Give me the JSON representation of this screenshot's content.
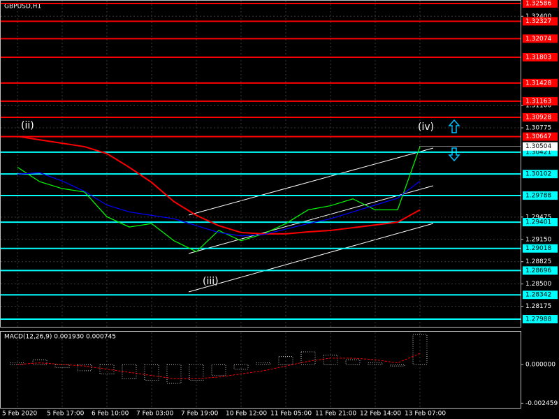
{
  "chart_data": [
    {
      "type": "line",
      "title": "GBPUSD,H1",
      "categories": [
        "5 Feb 2020",
        null,
        "5 Feb 17:00",
        null,
        "6 Feb 10:00",
        null,
        "7 Feb 03:00",
        null,
        "7 Feb 19:00",
        null,
        "10 Feb 12:00",
        null,
        "11 Feb 05:00",
        null,
        "11 Feb 21:00",
        null,
        "12 Feb 14:00",
        null,
        "13 Feb 07:00"
      ],
      "series": [
        {
          "color": "#00ff00",
          "values": [
            1.302,
            1.2999,
            1.2989,
            1.2984,
            1.2948,
            1.2933,
            1.2938,
            1.2913,
            1.2897,
            1.2928,
            1.2913,
            1.2923,
            1.2938,
            1.2958,
            1.2964,
            1.2974,
            1.2958,
            1.2958,
            1.305
          ]
        },
        {
          "color": "#ff0000",
          "values": [
            1.3065,
            1.306,
            1.3055,
            1.305,
            1.304,
            1.302,
            1.2998,
            1.297,
            1.295,
            1.2935,
            1.2925,
            1.2923,
            1.2923,
            1.2926,
            1.2928,
            1.2932,
            1.2936,
            1.294,
            1.2958
          ]
        },
        {
          "color": "#0000ff",
          "values": [
            1.301,
            1.3012,
            1.3,
            1.2985,
            1.2965,
            1.2955,
            1.295,
            1.2945,
            1.2935,
            1.2925,
            1.292,
            1.2922,
            1.293,
            1.2938,
            1.2945,
            1.2955,
            1.2965,
            1.2975,
            1.3
          ]
        }
      ],
      "ylim": [
        1.27876,
        1.32637
      ],
      "yticks": [
        {
          "value": 1.324,
          "label": "1.32400"
        },
        {
          "value": 1.311,
          "label": "1.31100"
        },
        {
          "value": 1.30775,
          "label": "1.30775"
        },
        {
          "value": 1.29475,
          "label": "1.29475"
        },
        {
          "value": 1.2915,
          "label": "1.29150"
        },
        {
          "value": 1.28825,
          "label": "1.28825"
        },
        {
          "value": 1.285,
          "label": "1.28500"
        },
        {
          "value": 1.28175,
          "label": "1.28175"
        }
      ],
      "levels": [
        {
          "value": 1.32586,
          "color": "#ff0000"
        },
        {
          "value": 1.32327,
          "color": "#ff0000"
        },
        {
          "value": 1.32074,
          "color": "#ff0000"
        },
        {
          "value": 1.31803,
          "color": "#ff0000"
        },
        {
          "value": 1.31428,
          "color": "#ff0000"
        },
        {
          "value": 1.31163,
          "color": "#ff0000"
        },
        {
          "value": 1.30928,
          "color": "#ff0000"
        },
        {
          "value": 1.30647,
          "color": "#ff0000"
        },
        {
          "value": 1.30421,
          "color": "#00ffff"
        },
        {
          "value": 1.30102,
          "color": "#00ffff"
        },
        {
          "value": 1.29788,
          "color": "#00ffff"
        },
        {
          "value": 1.29401,
          "color": "#00ffff"
        },
        {
          "value": 1.29018,
          "color": "#00ffff"
        },
        {
          "value": 1.28696,
          "color": "#00ffff"
        },
        {
          "value": 1.28342,
          "color": "#00ffff"
        },
        {
          "value": 1.27988,
          "color": "#00ffff"
        }
      ],
      "current_price": 1.30504,
      "annotations": [
        "(ii)",
        "(iii)",
        "(iv)"
      ],
      "grid": true
    },
    {
      "type": "bar",
      "title": "MACD(12,26,9) 0.001930 0.000745",
      "values": [
        0.0001,
        0.0003,
        -0.0002,
        -0.0004,
        -0.0006,
        -0.0009,
        -0.001,
        -0.0012,
        -0.001,
        -0.0007,
        -0.0003,
        0.0001,
        0.0005,
        0.0008,
        0.0006,
        0.0003,
        0.0001,
        -0.0001,
        0.0019
      ],
      "signal": {
        "color": "#ff0000",
        "values": [
          0.0,
          0.0001,
          0.0,
          -0.0001,
          -0.0003,
          -0.0005,
          -0.0007,
          -0.0009,
          -0.0009,
          -0.0008,
          -0.0006,
          -0.0004,
          -0.0001,
          0.0002,
          0.0004,
          0.0004,
          0.0003,
          0.0001,
          0.0007
        ]
      },
      "color": "#c0c0c0",
      "ylim": [
        -0.002752,
        0.002034
      ],
      "yticks": [
        {
          "value": 0,
          "label": "0.000000"
        },
        -0.002459
      ]
    }
  ]
}
